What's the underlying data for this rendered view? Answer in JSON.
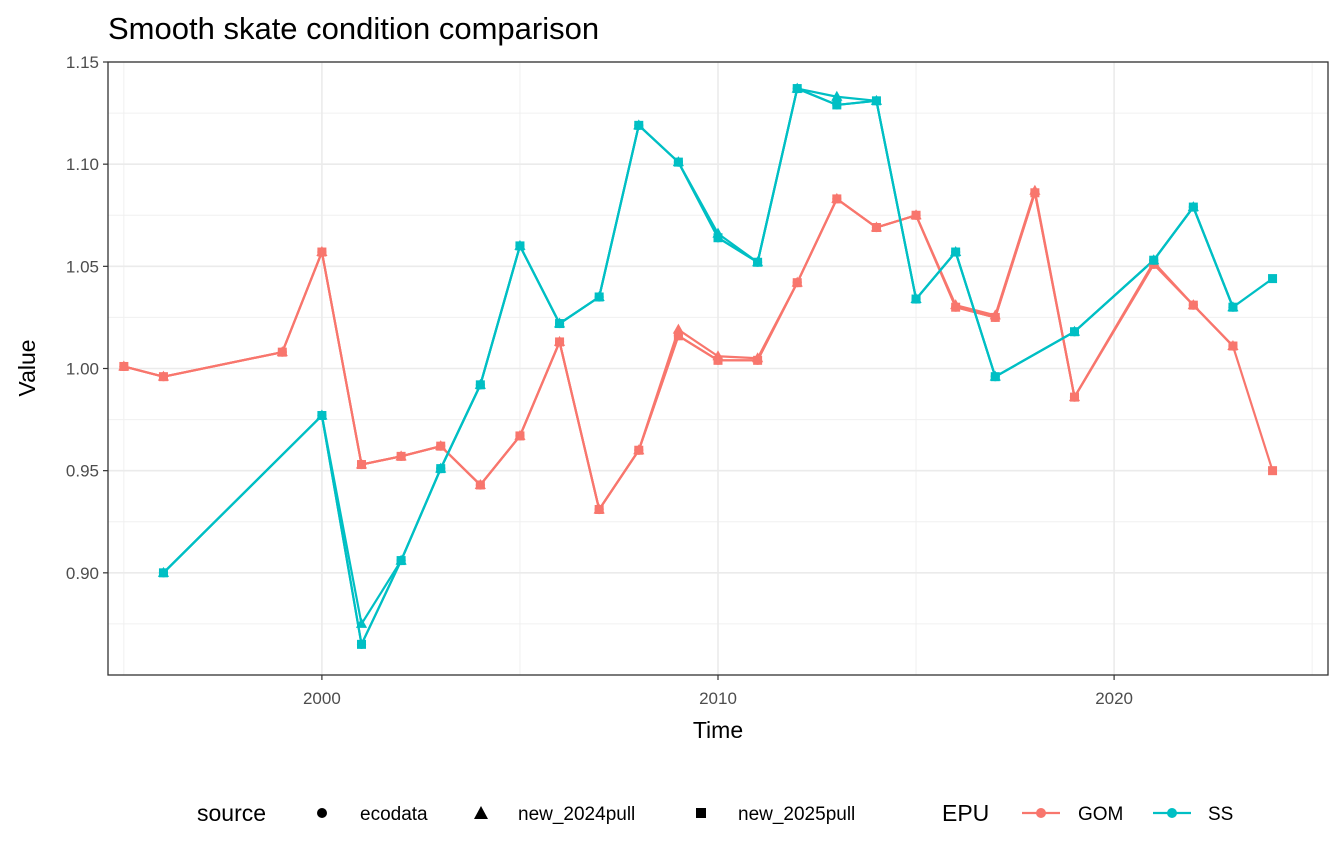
{
  "chart_data": {
    "type": "line",
    "title": "Smooth skate condition comparison",
    "xlabel": "Time",
    "ylabel": "Value",
    "xlim": [
      1994.6,
      2025.4
    ],
    "ylim": [
      0.85,
      1.15
    ],
    "x_ticks": [
      2000,
      2010,
      2020
    ],
    "x_tick_labels": [
      "2000",
      "2010",
      "2020"
    ],
    "y_ticks": [
      0.9,
      0.95,
      1.0,
      1.05,
      1.1,
      1.15
    ],
    "y_tick_labels": [
      "0.90",
      "0.95",
      "1.00",
      "1.05",
      "1.10",
      "1.15"
    ],
    "grid": true,
    "legend_position": "bottom",
    "legend": {
      "source_title": "source",
      "source_entries": [
        {
          "label": "ecodata",
          "shape": "circle"
        },
        {
          "label": "new_2024pull",
          "shape": "triangle"
        },
        {
          "label": "new_2025pull",
          "shape": "square"
        }
      ],
      "epu_title": "EPU",
      "epu_entries": [
        {
          "label": "GOM",
          "color": "#f8766d"
        },
        {
          "label": "SS",
          "color": "#00bfc4"
        }
      ]
    },
    "series": [
      {
        "epu": "GOM",
        "source": "ecodata",
        "shape": "circle",
        "color": "#f8766d",
        "x": [
          1995,
          1996,
          1999,
          2000,
          2001,
          2002,
          2003,
          2004,
          2005,
          2006,
          2007,
          2008,
          2009,
          2010,
          2011,
          2012,
          2013,
          2014,
          2015,
          2016,
          2017,
          2018,
          2019,
          2021,
          2022,
          2023
        ],
        "y": [
          1.001,
          0.996,
          1.008,
          1.057,
          0.953,
          0.957,
          0.962,
          0.943,
          0.967,
          1.013,
          0.931,
          0.96,
          1.016,
          1.004,
          1.004,
          1.042,
          1.083,
          1.069,
          1.075,
          1.03,
          1.025,
          1.086,
          0.986,
          1.051,
          1.031,
          1.011
        ]
      },
      {
        "epu": "GOM",
        "source": "new_2024pull",
        "shape": "triangle",
        "color": "#f8766d",
        "x": [
          1995,
          1996,
          1999,
          2000,
          2001,
          2002,
          2003,
          2004,
          2005,
          2006,
          2007,
          2008,
          2009,
          2010,
          2011,
          2012,
          2013,
          2014,
          2015,
          2016,
          2017,
          2018,
          2019,
          2021,
          2022,
          2023
        ],
        "y": [
          1.001,
          0.996,
          1.008,
          1.057,
          0.953,
          0.957,
          0.962,
          0.943,
          0.967,
          1.013,
          0.931,
          0.96,
          1.019,
          1.006,
          1.005,
          1.042,
          1.083,
          1.069,
          1.075,
          1.031,
          1.026,
          1.087,
          0.986,
          1.052,
          1.031,
          1.011
        ]
      },
      {
        "epu": "GOM",
        "source": "new_2025pull",
        "shape": "square",
        "color": "#f8766d",
        "x": [
          1995,
          1996,
          1999,
          2000,
          2001,
          2002,
          2003,
          2004,
          2005,
          2006,
          2007,
          2008,
          2009,
          2010,
          2011,
          2012,
          2013,
          2014,
          2015,
          2016,
          2017,
          2018,
          2019,
          2021,
          2022,
          2023,
          2024
        ],
        "y": [
          1.001,
          0.996,
          1.008,
          1.057,
          0.953,
          0.957,
          0.962,
          0.943,
          0.967,
          1.013,
          0.931,
          0.96,
          1.016,
          1.004,
          1.004,
          1.042,
          1.083,
          1.069,
          1.075,
          1.03,
          1.025,
          1.086,
          0.986,
          1.051,
          1.031,
          1.011,
          0.95
        ]
      },
      {
        "epu": "SS",
        "source": "ecodata",
        "shape": "circle",
        "color": "#00bfc4",
        "x": [
          1996,
          2000,
          2001,
          2002,
          2003,
          2004,
          2005,
          2006,
          2007,
          2008,
          2009,
          2010,
          2011,
          2012,
          2013,
          2014,
          2015,
          2016,
          2017,
          2019,
          2021,
          2022,
          2023
        ],
        "y": [
          0.9,
          0.977,
          0.865,
          0.906,
          0.951,
          0.992,
          1.06,
          1.022,
          1.035,
          1.119,
          1.101,
          1.064,
          1.052,
          1.137,
          1.129,
          1.131,
          1.034,
          1.057,
          0.996,
          1.018,
          1.053,
          1.079,
          1.03
        ]
      },
      {
        "epu": "SS",
        "source": "new_2024pull",
        "shape": "triangle",
        "color": "#00bfc4",
        "x": [
          1996,
          2000,
          2001,
          2002,
          2003,
          2004,
          2005,
          2006,
          2007,
          2008,
          2009,
          2010,
          2011,
          2012,
          2013,
          2014,
          2015,
          2016,
          2017,
          2019,
          2021,
          2022,
          2023
        ],
        "y": [
          0.9,
          0.977,
          0.875,
          0.906,
          0.951,
          0.992,
          1.06,
          1.022,
          1.035,
          1.119,
          1.101,
          1.066,
          1.052,
          1.137,
          1.133,
          1.131,
          1.034,
          1.057,
          0.996,
          1.018,
          1.053,
          1.079,
          1.03
        ]
      },
      {
        "epu": "SS",
        "source": "new_2025pull",
        "shape": "square",
        "color": "#00bfc4",
        "x": [
          1996,
          2000,
          2001,
          2002,
          2003,
          2004,
          2005,
          2006,
          2007,
          2008,
          2009,
          2010,
          2011,
          2012,
          2013,
          2014,
          2015,
          2016,
          2017,
          2019,
          2021,
          2022,
          2023,
          2024
        ],
        "y": [
          0.9,
          0.977,
          0.865,
          0.906,
          0.951,
          0.992,
          1.06,
          1.022,
          1.035,
          1.119,
          1.101,
          1.064,
          1.052,
          1.137,
          1.129,
          1.131,
          1.034,
          1.057,
          0.996,
          1.018,
          1.053,
          1.079,
          1.03,
          1.044
        ]
      }
    ]
  }
}
